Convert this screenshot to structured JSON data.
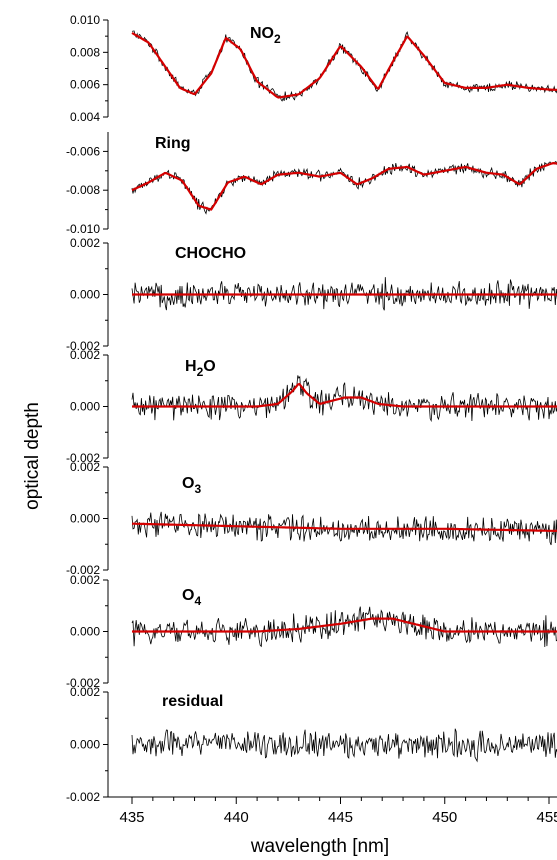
{
  "chart_data": {
    "type": "line",
    "xlabel": "wavelength [nm]",
    "ylabel": "optical depth",
    "xlim": [
      435,
      456.5
    ],
    "x_ticks": [
      "435",
      "440",
      "445",
      "450",
      "455"
    ],
    "x_tick_values": [
      435,
      440,
      445,
      450,
      455
    ],
    "colors": {
      "measured": "#000000",
      "fit": "#d40000"
    },
    "panels": [
      {
        "name": "NO2",
        "label": "NO",
        "label_sub": "2",
        "ylim": [
          0.004,
          0.01
        ],
        "y_ticks": [
          "0.010",
          "0.008",
          "0.006",
          "0.004"
        ],
        "y_tick_values": [
          0.01,
          0.008,
          0.006,
          0.004
        ],
        "noise": 0.0004,
        "fit": {
          "x": [
            435.0,
            435.8,
            436.6,
            437.3,
            438.0,
            438.8,
            439.5,
            440.2,
            441.0,
            442.0,
            443.0,
            444.0,
            445.0,
            446.0,
            446.8,
            447.5,
            448.2,
            449.0,
            450.0,
            451.0,
            452.0,
            453.0,
            454.0,
            455.0,
            456.5
          ],
          "y": [
            0.0092,
            0.0086,
            0.0071,
            0.0058,
            0.0054,
            0.0067,
            0.0089,
            0.0082,
            0.0062,
            0.0052,
            0.0054,
            0.0064,
            0.0084,
            0.0071,
            0.0057,
            0.0074,
            0.009,
            0.0078,
            0.0061,
            0.0058,
            0.0058,
            0.006,
            0.0058,
            0.0057,
            0.0056
          ]
        }
      },
      {
        "name": "Ring",
        "label": "Ring",
        "label_sub": "",
        "ylim": [
          -0.01,
          -0.005
        ],
        "y_ticks": [
          "-0.006",
          "-0.008",
          "-0.010"
        ],
        "y_tick_values": [
          -0.006,
          -0.008,
          -0.01
        ],
        "noise": 0.0004,
        "fit": {
          "x": [
            435.0,
            435.8,
            436.6,
            437.4,
            438.2,
            438.8,
            439.6,
            440.4,
            441.2,
            442.0,
            443.0,
            444.0,
            445.0,
            445.8,
            446.5,
            447.3,
            448.2,
            449.0,
            450.0,
            451.0,
            452.0,
            452.8,
            453.6,
            454.4,
            455.2,
            456.5
          ],
          "y": [
            -0.008,
            -0.0076,
            -0.0071,
            -0.0075,
            -0.0088,
            -0.009,
            -0.0076,
            -0.0073,
            -0.0077,
            -0.0072,
            -0.0071,
            -0.0073,
            -0.0071,
            -0.0077,
            -0.0074,
            -0.0069,
            -0.0068,
            -0.0072,
            -0.007,
            -0.0068,
            -0.0071,
            -0.0072,
            -0.0077,
            -0.0069,
            -0.0066,
            -0.0068
          ]
        }
      },
      {
        "name": "CHOCHO",
        "label": "CHOCHO",
        "label_sub": "",
        "ylim": [
          -0.002,
          0.002
        ],
        "y_ticks": [
          "0.002",
          "0.000",
          "-0.002"
        ],
        "y_tick_values": [
          0.002,
          0.0,
          -0.002
        ],
        "noise": 0.00075,
        "fit": {
          "x": [
            435.0,
            456.5
          ],
          "y": [
            0.0,
            0.0
          ]
        }
      },
      {
        "name": "H2O",
        "label": "H",
        "label_sub": "2",
        "label_tail": "O",
        "ylim": [
          -0.002,
          0.002
        ],
        "y_ticks": [
          "0.002",
          "0.000",
          "-0.002"
        ],
        "y_tick_values": [
          0.002,
          0.0,
          -0.002
        ],
        "noise": 0.00075,
        "fit": {
          "x": [
            435.0,
            441.0,
            442.0,
            442.7,
            443.0,
            443.4,
            444.0,
            445.2,
            446.0,
            446.8,
            448.0,
            456.5
          ],
          "y": [
            0.0,
            0.0,
            0.0001,
            0.0006,
            0.0009,
            0.0005,
            0.0001,
            0.00035,
            0.00035,
            0.0001,
            0.0,
            0.0
          ]
        }
      },
      {
        "name": "O3",
        "label": "O",
        "label_sub": "3",
        "ylim": [
          -0.002,
          0.002
        ],
        "y_ticks": [
          "0.002",
          "0.000",
          "-0.002"
        ],
        "y_tick_values": [
          0.002,
          0.0,
          -0.002
        ],
        "noise": 0.00075,
        "fit": {
          "x": [
            435.0,
            440.0,
            445.0,
            450.0,
            456.5
          ],
          "y": [
            -0.0002,
            -0.0003,
            -0.0004,
            -0.0004,
            -0.0005
          ]
        }
      },
      {
        "name": "O4",
        "label": "O",
        "label_sub": "4",
        "ylim": [
          -0.002,
          0.002
        ],
        "y_ticks": [
          "0.002",
          "0.000",
          "-0.002"
        ],
        "y_tick_values": [
          0.002,
          0.0,
          -0.002
        ],
        "noise": 0.00075,
        "fit": {
          "x": [
            435.0,
            441.0,
            443.0,
            445.0,
            446.5,
            447.5,
            449.0,
            450.0,
            452.0,
            456.5
          ],
          "y": [
            0.0,
            0.0,
            0.0001,
            0.0003,
            0.0005,
            0.0005,
            0.0002,
            0.0,
            0.0,
            0.0
          ]
        }
      },
      {
        "name": "residual",
        "label": "residual",
        "label_sub": "",
        "ylim": [
          -0.002,
          0.002
        ],
        "y_ticks": [
          "0.002",
          "0.000",
          "-0.002"
        ],
        "y_tick_values": [
          0.002,
          0.0,
          -0.002
        ],
        "noise": 0.00075,
        "fit": null
      }
    ]
  }
}
